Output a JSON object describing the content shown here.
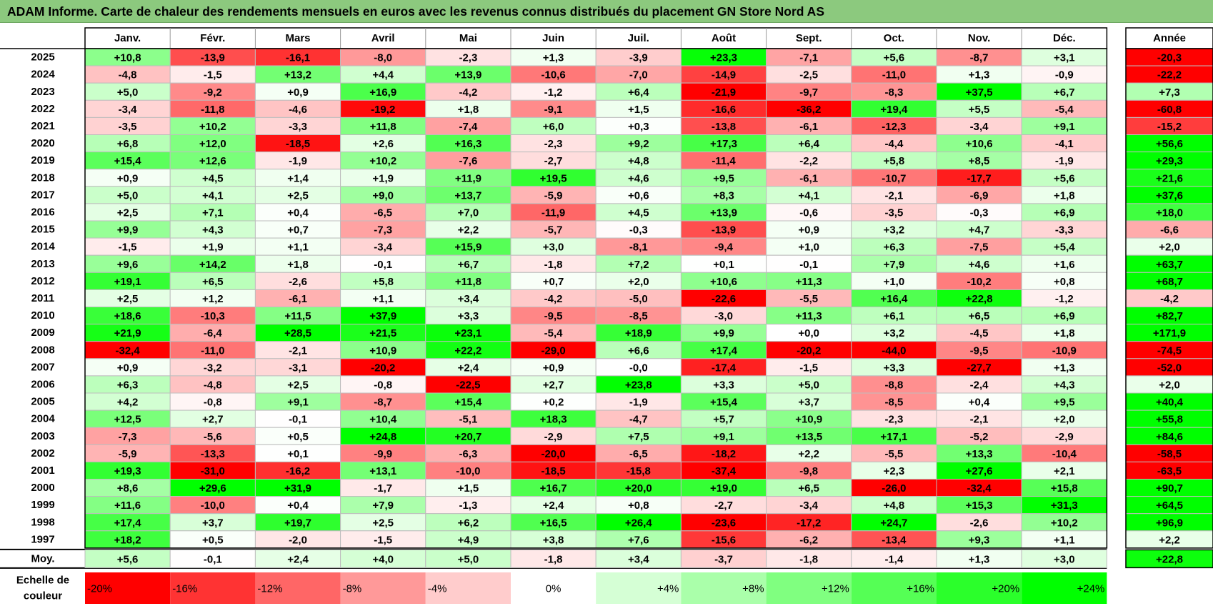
{
  "title": "ADAM Informe. Carte de chaleur des rendements mensuels en euros avec les revenus connus distribués du placement GN Store Nord AS",
  "chart_data": {
    "type": "heatmap",
    "title": "ADAM Informe. Carte de chaleur des rendements mensuels en euros avec les revenus connus distribués du placement GN Store Nord AS",
    "months": [
      "Janv.",
      "Févr.",
      "Mars",
      "Avril",
      "Mai",
      "Juin",
      "Juil.",
      "Août",
      "Sept.",
      "Oct.",
      "Nov.",
      "Déc."
    ],
    "year_header": "Année",
    "average_label": "Moy.",
    "rows": [
      {
        "year": "2025",
        "values": [
          "+10,8",
          "-13,9",
          "-16,1",
          "-8,0",
          "-2,3",
          "+1,3",
          "-3,9",
          "+23,3",
          "-7,1",
          "+5,6",
          "-8,7",
          "+3,1"
        ],
        "annual": "-20,3"
      },
      {
        "year": "2024",
        "values": [
          "-4,8",
          "-1,5",
          "+13,2",
          "+4,4",
          "+13,9",
          "-10,6",
          "-7,0",
          "-14,9",
          "-2,5",
          "-11,0",
          "+1,3",
          "-0,9"
        ],
        "annual": "-22,2"
      },
      {
        "year": "2023",
        "values": [
          "+5,0",
          "-9,2",
          "+0,9",
          "+16,9",
          "-4,2",
          "-1,2",
          "+6,4",
          "-21,9",
          "-9,7",
          "-8,3",
          "+37,5",
          "+6,7"
        ],
        "annual": "+7,3"
      },
      {
        "year": "2022",
        "values": [
          "-3,4",
          "-11,8",
          "-4,6",
          "-19,2",
          "+1,8",
          "-9,1",
          "+1,5",
          "-16,6",
          "-36,2",
          "+19,4",
          "+5,5",
          "-5,4"
        ],
        "annual": "-60,8"
      },
      {
        "year": "2021",
        "values": [
          "-3,5",
          "+10,2",
          "-3,3",
          "+11,8",
          "-7,4",
          "+6,0",
          "+0,3",
          "-13,8",
          "-6,1",
          "-12,3",
          "-3,4",
          "+9,1"
        ],
        "annual": "-15,2"
      },
      {
        "year": "2020",
        "values": [
          "+6,8",
          "+12,0",
          "-18,5",
          "+2,6",
          "+16,3",
          "-2,3",
          "+9,2",
          "+17,3",
          "+6,4",
          "-4,4",
          "+10,6",
          "-4,1"
        ],
        "annual": "+56,6"
      },
      {
        "year": "2019",
        "values": [
          "+15,4",
          "+12,6",
          "-1,9",
          "+10,2",
          "-7,6",
          "-2,7",
          "+4,8",
          "-11,4",
          "-2,2",
          "+5,8",
          "+8,5",
          "-1,9"
        ],
        "annual": "+29,3"
      },
      {
        "year": "2018",
        "values": [
          "+0,9",
          "+4,5",
          "+1,4",
          "+1,9",
          "+11,9",
          "+19,5",
          "+4,6",
          "+9,5",
          "-6,1",
          "-10,7",
          "-17,7",
          "+5,6"
        ],
        "annual": "+21,6"
      },
      {
        "year": "2017",
        "values": [
          "+5,0",
          "+4,1",
          "+2,5",
          "+9,0",
          "+13,7",
          "-5,9",
          "+0,6",
          "+8,3",
          "+4,1",
          "-2,1",
          "-6,9",
          "+1,8"
        ],
        "annual": "+37,6"
      },
      {
        "year": "2016",
        "values": [
          "+2,5",
          "+7,1",
          "+0,4",
          "-6,5",
          "+7,0",
          "-11,9",
          "+4,5",
          "+13,9",
          "-0,6",
          "-3,5",
          "-0,3",
          "+6,9"
        ],
        "annual": "+18,0"
      },
      {
        "year": "2015",
        "values": [
          "+9,9",
          "+4,3",
          "+0,7",
          "-7,3",
          "+2,2",
          "-5,7",
          "-0,3",
          "-13,9",
          "+0,9",
          "+3,2",
          "+4,7",
          "-3,3"
        ],
        "annual": "-6,6"
      },
      {
        "year": "2014",
        "values": [
          "-1,5",
          "+1,9",
          "+1,1",
          "-3,4",
          "+15,9",
          "+3,0",
          "-8,1",
          "-9,4",
          "+1,0",
          "+6,3",
          "-7,5",
          "+5,4"
        ],
        "annual": "+2,0"
      },
      {
        "year": "2013",
        "values": [
          "+9,6",
          "+14,2",
          "+1,8",
          "-0,1",
          "+6,7",
          "-1,8",
          "+7,2",
          "+0,1",
          "-0,1",
          "+7,9",
          "+4,6",
          "+1,6"
        ],
        "annual": "+63,7"
      },
      {
        "year": "2012",
        "values": [
          "+19,1",
          "+6,5",
          "-2,6",
          "+5,8",
          "+11,8",
          "+0,7",
          "+2,0",
          "+10,6",
          "+11,3",
          "+1,0",
          "-10,2",
          "+0,8"
        ],
        "annual": "+68,7"
      },
      {
        "year": "2011",
        "values": [
          "+2,5",
          "+1,2",
          "-6,1",
          "+1,1",
          "+3,4",
          "-4,2",
          "-5,0",
          "-22,6",
          "-5,5",
          "+16,4",
          "+22,8",
          "-1,2"
        ],
        "annual": "-4,2"
      },
      {
        "year": "2010",
        "values": [
          "+18,6",
          "-10,3",
          "+11,5",
          "+37,9",
          "+3,3",
          "-9,5",
          "-8,5",
          "-3,0",
          "+11,3",
          "+6,1",
          "+6,5",
          "+6,9"
        ],
        "annual": "+82,7"
      },
      {
        "year": "2009",
        "values": [
          "+21,9",
          "-6,4",
          "+28,5",
          "+21,5",
          "+23,1",
          "-5,4",
          "+18,9",
          "+9,9",
          "+0,0",
          "+3,2",
          "-4,5",
          "+1,8"
        ],
        "annual": "+171,9"
      },
      {
        "year": "2008",
        "values": [
          "-32,4",
          "-11,0",
          "-2,1",
          "+10,9",
          "+22,2",
          "-29,0",
          "+6,6",
          "+17,4",
          "-20,2",
          "-44,0",
          "-9,5",
          "-10,9"
        ],
        "annual": "-74,5"
      },
      {
        "year": "2007",
        "values": [
          "+0,9",
          "-3,2",
          "-3,1",
          "-20,2",
          "+2,4",
          "+0,9",
          "-0,0",
          "-17,4",
          "-1,5",
          "+3,3",
          "-27,7",
          "+1,3"
        ],
        "annual": "-52,0"
      },
      {
        "year": "2006",
        "values": [
          "+6,3",
          "-4,8",
          "+2,5",
          "-0,8",
          "-22,5",
          "+2,7",
          "+23,8",
          "+3,3",
          "+5,0",
          "-8,8",
          "-2,4",
          "+4,3"
        ],
        "annual": "+2,0"
      },
      {
        "year": "2005",
        "values": [
          "+4,2",
          "-0,8",
          "+9,1",
          "-8,7",
          "+15,4",
          "+0,2",
          "-1,9",
          "+15,4",
          "+3,7",
          "-8,5",
          "+0,4",
          "+9,5"
        ],
        "annual": "+40,4"
      },
      {
        "year": "2004",
        "values": [
          "+12,5",
          "+2,7",
          "-0,1",
          "+10,4",
          "-5,1",
          "+18,3",
          "-4,7",
          "+5,7",
          "+10,9",
          "-2,3",
          "-2,1",
          "+2,0"
        ],
        "annual": "+55,8"
      },
      {
        "year": "2003",
        "values": [
          "-7,3",
          "-5,6",
          "+0,5",
          "+24,8",
          "+20,7",
          "-2,9",
          "+7,5",
          "+9,1",
          "+13,5",
          "+17,1",
          "-5,2",
          "-2,9"
        ],
        "annual": "+84,6"
      },
      {
        "year": "2002",
        "values": [
          "-5,9",
          "-13,3",
          "+0,1",
          "-9,9",
          "-6,3",
          "-20,0",
          "-6,5",
          "-18,2",
          "+2,2",
          "-5,5",
          "+13,3",
          "-10,4"
        ],
        "annual": "-58,5"
      },
      {
        "year": "2001",
        "values": [
          "+19,3",
          "-31,0",
          "-16,2",
          "+13,1",
          "-10,0",
          "-18,5",
          "-15,8",
          "-37,4",
          "-9,8",
          "+2,3",
          "+27,6",
          "+2,1"
        ],
        "annual": "-63,5"
      },
      {
        "year": "2000",
        "values": [
          "+8,6",
          "+29,6",
          "+31,9",
          "-1,7",
          "+1,5",
          "+16,7",
          "+20,0",
          "+19,0",
          "+6,5",
          "-26,0",
          "-32,4",
          "+15,8"
        ],
        "annual": "+90,7"
      },
      {
        "year": "1999",
        "values": [
          "+11,6",
          "-10,0",
          "+0,4",
          "+7,9",
          "-1,3",
          "+2,4",
          "+0,8",
          "-2,7",
          "-3,4",
          "+4,8",
          "+15,3",
          "+31,3"
        ],
        "annual": "+64,5"
      },
      {
        "year": "1998",
        "values": [
          "+17,4",
          "+3,7",
          "+19,7",
          "+2,5",
          "+6,2",
          "+16,5",
          "+26,4",
          "-23,6",
          "-17,2",
          "+24,7",
          "-2,6",
          "+10,2"
        ],
        "annual": "+96,9"
      },
      {
        "year": "1997",
        "values": [
          "+18,2",
          "+0,5",
          "-2,0",
          "-1,5",
          "+4,9",
          "+3,8",
          "+7,6",
          "-15,6",
          "-6,2",
          "-13,4",
          "+9,3",
          "+1,1"
        ],
        "annual": "+2,2"
      }
    ],
    "average": {
      "values": [
        "+5,6",
        "-0,1",
        "+2,4",
        "+4,0",
        "+5,0",
        "-1,8",
        "+3,4",
        "-3,7",
        "-1,8",
        "-1,4",
        "+1,3",
        "+3,0"
      ],
      "annual": "+22,8"
    },
    "scale": {
      "label_line1": "Echelle de",
      "label_line2": "couleur",
      "steps": [
        {
          "label": "-20%",
          "value": -20
        },
        {
          "label": "-16%",
          "value": -16
        },
        {
          "label": "-12%",
          "value": -12
        },
        {
          "label": "-8%",
          "value": -8
        },
        {
          "label": "-4%",
          "value": -4
        },
        {
          "label": "0%",
          "value": 0
        },
        {
          "label": "+4%",
          "value": 4
        },
        {
          "label": "+8%",
          "value": 8
        },
        {
          "label": "+12%",
          "value": 12
        },
        {
          "label": "+16%",
          "value": 16
        },
        {
          "label": "+20%",
          "value": 20
        },
        {
          "label": "+24%",
          "value": 24
        }
      ]
    },
    "colors": {
      "negative_max": "#ff0000",
      "neutral": "#ffffff",
      "positive_max": "#00ff00",
      "title_bar": "#8cc97e"
    }
  }
}
